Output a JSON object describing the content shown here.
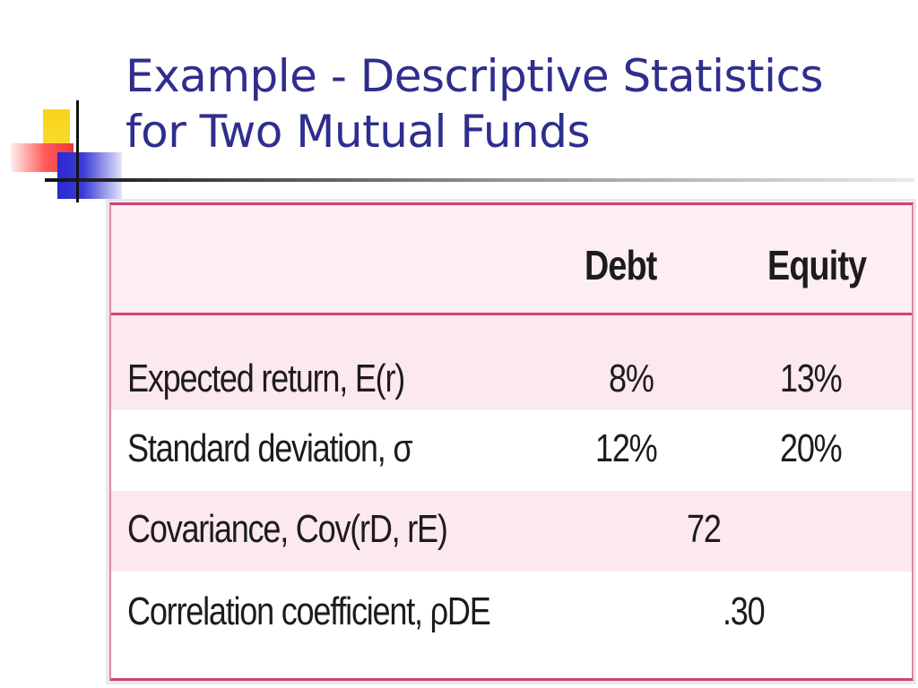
{
  "slide": {
    "title_line1": "Example - Descriptive Statistics",
    "title_line2": "for Two Mutual Funds"
  },
  "table": {
    "columns": [
      "",
      "Debt",
      "Equity"
    ],
    "rows": [
      {
        "label": "Expected return, E(r)",
        "debt": "8%",
        "equity": "13%"
      },
      {
        "label": "Standard deviation, σ",
        "debt": "12%",
        "equity": "20%"
      },
      {
        "label": "Covariance, Cov(rD, rE)",
        "value": "72"
      },
      {
        "label": "Correlation coefficient, ρDE",
        "value": ".30"
      }
    ]
  },
  "colors": {
    "title": "#2e2e8e",
    "table_rule": "#cc4472",
    "row_shade": "#fce8ef"
  }
}
